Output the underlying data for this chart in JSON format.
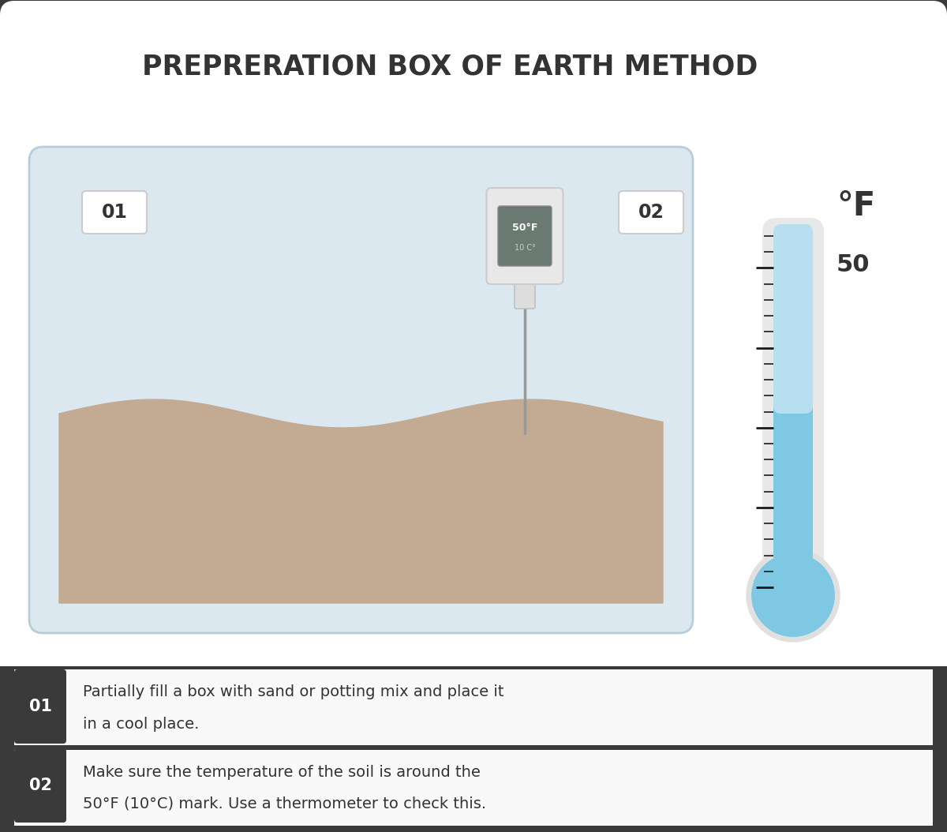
{
  "title": "PREPRERATION BOX OF EARTH METHOD",
  "title_color": "#333333",
  "bg_outer": "#3a3a3a",
  "bg_inner": "#ffffff",
  "step1_label": "01",
  "step2_label": "02",
  "step1_text_line1": "Partially fill a box with sand or potting mix and place it",
  "step1_text_line2": "in a cool place.",
  "step2_text_line1": "Make sure the temperature of the soil is around the",
  "step2_text_line2": "50°F (10°C) mark. Use a thermometer to check this.",
  "box_bg_color": "#dce8f0",
  "box_border_color": "#b8cdd8",
  "soil_color": "#c2ab92",
  "thermometer_blue": "#7ec8e3",
  "thermometer_light": "#b8dff0",
  "scale_color": "#1a1a1a",
  "device_bg": "#e8e8e8",
  "device_screen_bg": "#6a7a72",
  "wire_color": "#999999",
  "label_bg": "#ffffff",
  "label_border": "#cccccc",
  "step_label_bg": "#3a3a3a",
  "step_label_fg": "#ffffff",
  "footer_sep_color": "#3a3a3a"
}
